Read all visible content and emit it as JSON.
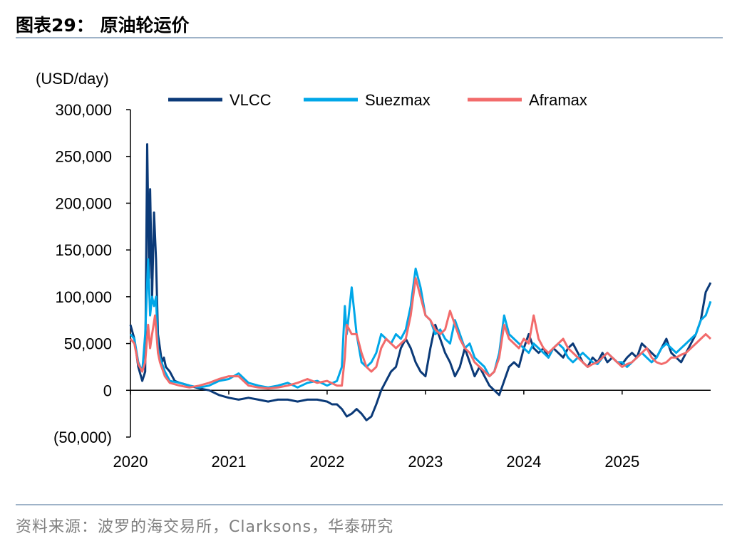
{
  "header": {
    "title": "图表29： 原油轮运价"
  },
  "footer": {
    "source": "资料来源：波罗的海交易所，Clarksons，华泰研究"
  },
  "chart_data": {
    "type": "line",
    "unit_label": "(USD/day)",
    "ylim": [
      -50000,
      300000
    ],
    "yticks": [
      -50000,
      0,
      50000,
      100000,
      150000,
      200000,
      250000,
      300000
    ],
    "ytick_labels": [
      "(50,000)",
      "0",
      "50,000",
      "100,000",
      "150,000",
      "200,000",
      "250,000",
      "300,000"
    ],
    "xlim": [
      2020.0,
      2025.9
    ],
    "xticks": [
      2020,
      2021,
      2022,
      2023,
      2024,
      2025
    ],
    "xtick_labels": [
      "2020",
      "2021",
      "2022",
      "2023",
      "2024",
      "2025"
    ],
    "legend_position": "top",
    "series": [
      {
        "name": "VLCC",
        "color": "#0b3a78",
        "x": [
          2020.0,
          2020.04,
          2020.08,
          2020.12,
          2020.15,
          2020.17,
          2020.19,
          2020.2,
          2020.22,
          2020.24,
          2020.26,
          2020.28,
          2020.3,
          2020.32,
          2020.34,
          2020.36,
          2020.4,
          2020.45,
          2020.5,
          2020.6,
          2020.7,
          2020.8,
          2020.9,
          2021.0,
          2021.1,
          2021.2,
          2021.3,
          2021.4,
          2021.5,
          2021.6,
          2021.7,
          2021.8,
          2021.9,
          2022.0,
          2022.05,
          2022.1,
          2022.15,
          2022.2,
          2022.25,
          2022.3,
          2022.35,
          2022.4,
          2022.45,
          2022.5,
          2022.55,
          2022.6,
          2022.65,
          2022.7,
          2022.75,
          2022.8,
          2022.85,
          2022.9,
          2022.95,
          2023.0,
          2023.05,
          2023.1,
          2023.15,
          2023.2,
          2023.25,
          2023.3,
          2023.35,
          2023.4,
          2023.45,
          2023.5,
          2023.55,
          2023.6,
          2023.65,
          2023.7,
          2023.75,
          2023.8,
          2023.85,
          2023.9,
          2023.95,
          2024.0,
          2024.05,
          2024.1,
          2024.15,
          2024.2,
          2024.25,
          2024.3,
          2024.35,
          2024.4,
          2024.45,
          2024.5,
          2024.55,
          2024.6,
          2024.65,
          2024.7,
          2024.75,
          2024.8,
          2024.85,
          2024.9,
          2024.95,
          2025.0,
          2025.05,
          2025.1,
          2025.15,
          2025.2,
          2025.25,
          2025.3,
          2025.35,
          2025.4,
          2025.45,
          2025.5,
          2025.55,
          2025.6,
          2025.65,
          2025.7,
          2025.75,
          2025.8,
          2025.85,
          2025.9
        ],
        "y": [
          70000,
          55000,
          25000,
          10000,
          20000,
          263000,
          120000,
          215000,
          100000,
          190000,
          140000,
          60000,
          45000,
          30000,
          35000,
          25000,
          20000,
          10000,
          8000,
          5000,
          2000,
          0,
          -5000,
          -8000,
          -10000,
          -8000,
          -10000,
          -12000,
          -10000,
          -10000,
          -12000,
          -10000,
          -10000,
          -12000,
          -15000,
          -15000,
          -20000,
          -28000,
          -25000,
          -20000,
          -25000,
          -32000,
          -28000,
          -15000,
          0,
          10000,
          20000,
          25000,
          45000,
          55000,
          45000,
          30000,
          20000,
          15000,
          45000,
          70000,
          55000,
          40000,
          30000,
          15000,
          25000,
          45000,
          30000,
          15000,
          25000,
          15000,
          5000,
          0,
          -5000,
          10000,
          25000,
          30000,
          25000,
          45000,
          60000,
          45000,
          40000,
          45000,
          35000,
          45000,
          40000,
          35000,
          45000,
          50000,
          40000,
          30000,
          25000,
          35000,
          30000,
          40000,
          30000,
          35000,
          30000,
          28000,
          35000,
          40000,
          35000,
          50000,
          45000,
          40000,
          35000,
          45000,
          55000,
          40000,
          35000,
          30000,
          40000,
          50000,
          60000,
          75000,
          105000,
          115000
        ]
      },
      {
        "name": "Suezmax",
        "color": "#00a7e8",
        "x": [
          2020.0,
          2020.04,
          2020.08,
          2020.12,
          2020.15,
          2020.18,
          2020.2,
          2020.22,
          2020.24,
          2020.26,
          2020.28,
          2020.3,
          2020.35,
          2020.4,
          2020.5,
          2020.6,
          2020.7,
          2020.8,
          2020.9,
          2021.0,
          2021.1,
          2021.2,
          2021.3,
          2021.4,
          2021.5,
          2021.6,
          2021.7,
          2021.8,
          2021.9,
          2022.0,
          2022.1,
          2022.15,
          2022.18,
          2022.2,
          2022.25,
          2022.3,
          2022.35,
          2022.4,
          2022.45,
          2022.5,
          2022.55,
          2022.6,
          2022.65,
          2022.7,
          2022.75,
          2022.8,
          2022.85,
          2022.9,
          2022.95,
          2023.0,
          2023.05,
          2023.1,
          2023.15,
          2023.2,
          2023.25,
          2023.3,
          2023.35,
          2023.4,
          2023.45,
          2023.5,
          2023.55,
          2023.6,
          2023.65,
          2023.7,
          2023.75,
          2023.8,
          2023.85,
          2023.9,
          2023.95,
          2024.0,
          2024.05,
          2024.1,
          2024.15,
          2024.2,
          2024.25,
          2024.3,
          2024.35,
          2024.4,
          2024.45,
          2024.5,
          2024.55,
          2024.6,
          2024.65,
          2024.7,
          2024.75,
          2024.8,
          2024.85,
          2024.9,
          2024.95,
          2025.0,
          2025.05,
          2025.1,
          2025.15,
          2025.2,
          2025.25,
          2025.3,
          2025.35,
          2025.4,
          2025.45,
          2025.5,
          2025.55,
          2025.6,
          2025.65,
          2025.7,
          2025.75,
          2025.8,
          2025.85,
          2025.9
        ],
        "y": [
          60000,
          55000,
          30000,
          20000,
          60000,
          140000,
          80000,
          100000,
          90000,
          100000,
          45000,
          35000,
          20000,
          10000,
          8000,
          5000,
          3000,
          5000,
          10000,
          12000,
          18000,
          8000,
          5000,
          3000,
          5000,
          8000,
          3000,
          8000,
          10000,
          5000,
          10000,
          25000,
          90000,
          60000,
          110000,
          60000,
          30000,
          25000,
          30000,
          40000,
          60000,
          55000,
          50000,
          60000,
          55000,
          65000,
          90000,
          130000,
          110000,
          80000,
          75000,
          60000,
          65000,
          55000,
          50000,
          75000,
          60000,
          45000,
          50000,
          35000,
          30000,
          25000,
          15000,
          20000,
          40000,
          80000,
          60000,
          55000,
          50000,
          45000,
          40000,
          50000,
          45000,
          40000,
          35000,
          45000,
          50000,
          45000,
          35000,
          30000,
          35000,
          40000,
          35000,
          30000,
          28000,
          35000,
          40000,
          35000,
          30000,
          30000,
          25000,
          30000,
          35000,
          40000,
          35000,
          30000,
          35000,
          45000,
          50000,
          45000,
          40000,
          45000,
          50000,
          55000,
          60000,
          75000,
          80000,
          95000
        ]
      },
      {
        "name": "Aframax",
        "color": "#f26b6b",
        "x": [
          2020.0,
          2020.04,
          2020.08,
          2020.12,
          2020.15,
          2020.18,
          2020.2,
          2020.22,
          2020.25,
          2020.28,
          2020.3,
          2020.35,
          2020.4,
          2020.5,
          2020.6,
          2020.7,
          2020.8,
          2020.9,
          2021.0,
          2021.1,
          2021.2,
          2021.3,
          2021.4,
          2021.5,
          2021.6,
          2021.7,
          2021.8,
          2021.9,
          2022.0,
          2022.1,
          2022.15,
          2022.18,
          2022.2,
          2022.25,
          2022.3,
          2022.35,
          2022.4,
          2022.45,
          2022.5,
          2022.55,
          2022.6,
          2022.65,
          2022.7,
          2022.75,
          2022.8,
          2022.85,
          2022.9,
          2022.95,
          2023.0,
          2023.05,
          2023.1,
          2023.15,
          2023.2,
          2023.25,
          2023.3,
          2023.35,
          2023.4,
          2023.45,
          2023.5,
          2023.55,
          2023.6,
          2023.65,
          2023.7,
          2023.75,
          2023.8,
          2023.85,
          2023.9,
          2023.95,
          2024.0,
          2024.05,
          2024.1,
          2024.15,
          2024.2,
          2024.25,
          2024.3,
          2024.35,
          2024.4,
          2024.45,
          2024.5,
          2024.55,
          2024.6,
          2024.65,
          2024.7,
          2024.75,
          2024.8,
          2024.85,
          2024.9,
          2024.95,
          2025.0,
          2025.05,
          2025.1,
          2025.15,
          2025.2,
          2025.25,
          2025.3,
          2025.35,
          2025.4,
          2025.45,
          2025.5,
          2025.55,
          2025.6,
          2025.65,
          2025.7,
          2025.75,
          2025.8,
          2025.85,
          2025.9
        ],
        "y": [
          55000,
          50000,
          28000,
          20000,
          30000,
          70000,
          45000,
          60000,
          80000,
          40000,
          30000,
          15000,
          8000,
          5000,
          3000,
          5000,
          8000,
          12000,
          15000,
          15000,
          5000,
          3000,
          2000,
          3000,
          5000,
          8000,
          12000,
          8000,
          10000,
          5000,
          5000,
          35000,
          70000,
          60000,
          60000,
          40000,
          25000,
          20000,
          25000,
          45000,
          55000,
          50000,
          45000,
          50000,
          55000,
          80000,
          120000,
          100000,
          80000,
          75000,
          65000,
          60000,
          65000,
          85000,
          70000,
          55000,
          45000,
          40000,
          30000,
          25000,
          20000,
          15000,
          20000,
          35000,
          70000,
          55000,
          50000,
          45000,
          55000,
          50000,
          80000,
          55000,
          45000,
          40000,
          45000,
          50000,
          55000,
          45000,
          40000,
          35000,
          30000,
          25000,
          28000,
          30000,
          35000,
          40000,
          35000,
          30000,
          25000,
          28000,
          30000,
          35000,
          40000,
          45000,
          35000,
          30000,
          28000,
          30000,
          35000,
          35000,
          38000,
          40000,
          45000,
          50000,
          55000,
          60000,
          55000
        ]
      }
    ]
  }
}
